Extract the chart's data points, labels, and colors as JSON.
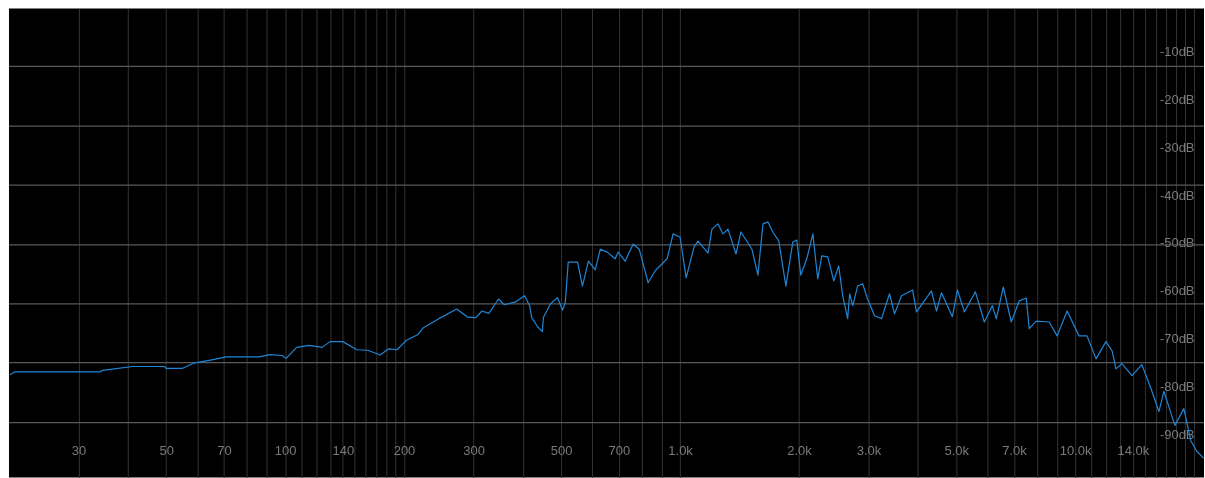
{
  "chart_data": {
    "type": "line",
    "log": "x",
    "grid": "x",
    "xlim": [
      20,
      21200
    ],
    "ylim": [
      -99,
      -1
    ],
    "xticks": [
      30,
      {
        "value": 40,
        "label": null
      },
      50,
      {
        "value": 60,
        "label": null
      },
      70,
      {
        "value": 80,
        "label": null
      },
      {
        "value": 90,
        "label": null
      },
      100,
      {
        "value": 110,
        "label": null
      },
      {
        "value": 120,
        "label": null
      },
      {
        "value": 130,
        "label": null
      },
      140,
      {
        "value": 150,
        "label": null
      },
      {
        "value": 160,
        "label": null
      },
      {
        "value": 170,
        "label": null
      },
      {
        "value": 180,
        "label": null
      },
      {
        "value": 190,
        "label": null
      },
      200,
      300,
      {
        "value": 400,
        "label": null
      },
      500,
      {
        "value": 600,
        "label": null
      },
      700,
      {
        "value": 800,
        "label": null
      },
      {
        "value": 900,
        "label": null
      },
      {
        "value": 1000,
        "label": "1.0k"
      },
      {
        "value": 2000,
        "label": "2.0k"
      },
      {
        "value": 3000,
        "label": "3.0k"
      },
      {
        "value": 4000,
        "label": null
      },
      {
        "value": 5000,
        "label": "5.0k"
      },
      {
        "value": 6000,
        "label": null
      },
      {
        "value": 7000,
        "label": "7.0k"
      },
      {
        "value": 8000,
        "label": null
      },
      {
        "value": 9000,
        "label": null
      },
      {
        "value": 10000,
        "label": "10.0k"
      },
      {
        "value": 11000,
        "label": null
      },
      {
        "value": 12000,
        "label": null
      },
      {
        "value": 13000,
        "label": null
      },
      {
        "value": 14000,
        "label": "14.0k"
      },
      {
        "value": 15000,
        "label": null
      },
      {
        "value": 16000,
        "label": null
      },
      {
        "value": 17000,
        "label": null
      },
      {
        "value": 18000,
        "label": null
      },
      {
        "value": 19000,
        "label": null
      },
      {
        "value": 20000,
        "label": null
      }
    ],
    "yticks": [
      {
        "value": -10,
        "label": "-10dB"
      },
      {
        "value": -20,
        "label": "-20dB"
      },
      {
        "value": -30,
        "label": "-30dB"
      },
      {
        "value": -40,
        "label": "-40dB"
      },
      {
        "value": -50,
        "label": "-50dB"
      },
      {
        "value": -60,
        "label": "-60dB"
      },
      {
        "value": -70,
        "label": "-70dB"
      },
      {
        "value": -80,
        "label": "-80dB"
      },
      {
        "value": -90,
        "label": "-90dB"
      }
    ],
    "ref_lines": [
      {
        "axis": "y",
        "value": -13.1,
        "color": "#595959"
      },
      {
        "axis": "y",
        "value": -25.6,
        "color": "#595959"
      },
      {
        "axis": "y",
        "value": -37.9,
        "color": "#595959"
      },
      {
        "axis": "y",
        "value": -50.4,
        "color": "#595959"
      },
      {
        "axis": "y",
        "value": -62.7,
        "color": "#595959"
      },
      {
        "axis": "y",
        "value": -75.0,
        "color": "#595959"
      },
      {
        "axis": "y",
        "value": -87.5,
        "color": "#595959"
      }
    ],
    "x": [
      20.1,
      20.7,
      34.1,
      34.5,
      41.1,
      49.5,
      50,
      54.9,
      58.6,
      64.3,
      71.0,
      86.0,
      91.7,
      98.3,
      100.6,
      107,
      115,
      124,
      130,
      140,
      152,
      162,
      174,
      183,
      192,
      203,
      217,
      224,
      245,
      272,
      290,
      304,
      315,
      328,
      347,
      359,
      383,
      404,
      416,
      421,
      436,
      448,
      451,
      470,
      489,
      504,
      512,
      521,
      550,
      566,
      586,
      610,
      628,
      654,
      685,
      697,
      726,
      761,
      788,
      830,
      865,
      927,
      960,
      1000,
      1036,
      1085,
      1110,
      1177,
      1204,
      1247,
      1284,
      1322,
      1385,
      1426,
      1520,
      1574,
      1621,
      1669,
      1717,
      1778,
      1853,
      1929,
      1975,
      2021,
      2093,
      2168,
      2231,
      2284,
      2365,
      2449,
      2521,
      2580,
      2656,
      2687,
      2735,
      2815,
      2898,
      2983,
      3107,
      3236,
      3390,
      3490,
      3636,
      3877,
      3968,
      4329,
      4457,
      4588,
      4891,
      5035,
      5245,
      5592,
      5892,
      6172,
      6317,
      6580,
      6893,
      7221,
      7521,
      7653,
      7971,
      8598,
      9007,
      9546,
      10230,
      10720,
      11300,
      11970,
      12400,
      12690,
      13140,
      13930,
      14760,
      15560,
      16300,
      16780,
      17890,
      18850,
      19630,
      20330,
      21180
    ],
    "series": [
      {
        "color": "#1f86d6",
        "values": [
          -77.5,
          -76.9,
          -76.9,
          -76.6,
          -75.8,
          -75.8,
          -76.2,
          -76.2,
          -75.1,
          -74.5,
          -73.8,
          -73.8,
          -73.3,
          -73.5,
          -74.1,
          -71.8,
          -71.4,
          -71.8,
          -70.6,
          -70.6,
          -72.3,
          -72.4,
          -73.4,
          -72.1,
          -72.3,
          -70.3,
          -69.1,
          -67.7,
          -65.8,
          -63.8,
          -65.5,
          -65.6,
          -64.2,
          -64.7,
          -61.7,
          -62.9,
          -62.3,
          -61.0,
          -63.1,
          -65.6,
          -67.5,
          -68.5,
          -65.5,
          -62.7,
          -61.4,
          -64.0,
          -62.5,
          -54.0,
          -54.0,
          -59.0,
          -53.8,
          -55.6,
          -51.3,
          -51.9,
          -53.3,
          -51.9,
          -53.8,
          -50.2,
          -51.3,
          -58.3,
          -55.8,
          -53.3,
          -48.1,
          -48.8,
          -57.3,
          -50.8,
          -49.6,
          -52.1,
          -47.1,
          -46.0,
          -48.1,
          -47.1,
          -52.3,
          -47.7,
          -51.3,
          -56.7,
          -46.0,
          -45.6,
          -47.7,
          -49.6,
          -59.0,
          -49.8,
          -49.4,
          -56.7,
          -53.3,
          -48.1,
          -57.5,
          -52.7,
          -52.9,
          -57.9,
          -54.8,
          -61.0,
          -65.8,
          -60.6,
          -63.1,
          -59.0,
          -58.5,
          -61.7,
          -65.2,
          -65.8,
          -60.6,
          -64.8,
          -61.0,
          -59.8,
          -64.4,
          -60.0,
          -64.2,
          -60.4,
          -65.4,
          -59.8,
          -64.4,
          -60.2,
          -66.5,
          -63.1,
          -65.8,
          -59.2,
          -66.5,
          -62.1,
          -61.5,
          -67.9,
          -66.3,
          -66.5,
          -69.4,
          -64.2,
          -69.4,
          -69.4,
          -74.2,
          -70.6,
          -72.5,
          -76.3,
          -75.2,
          -77.7,
          -75.4,
          -80.4,
          -85.2,
          -81.0,
          -88.1,
          -84.6,
          -91.3,
          -93.5,
          -95.0
        ]
      }
    ]
  }
}
